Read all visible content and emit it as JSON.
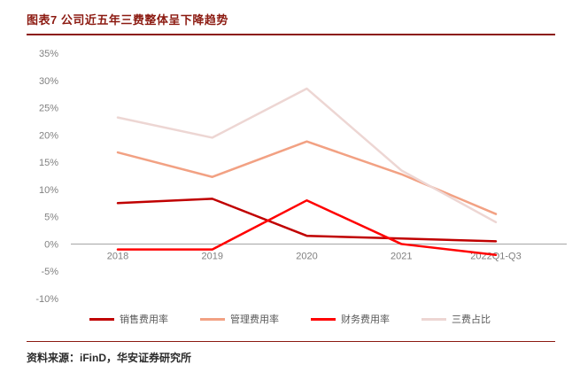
{
  "header": {
    "title": "图表7 公司近五年三费整体呈下降趋势"
  },
  "footer": {
    "source_label": "资料来源：",
    "source_text": "iFinD，华安证券研究所"
  },
  "colors": {
    "accent": "#8C1A11",
    "axis_text": "#808080",
    "axis_line": "#A6A6A6",
    "legend_text": "#595959"
  },
  "chart_data": {
    "type": "line",
    "title": "公司近五年三费整体呈下降趋势",
    "categories": [
      "2018",
      "2019",
      "2020",
      "2021",
      "2022Q1-Q3"
    ],
    "unit": "%",
    "ylim": [
      -10,
      35
    ],
    "y_ticks": [
      35,
      30,
      25,
      20,
      15,
      10,
      5,
      0,
      -5,
      -10
    ],
    "grid": false,
    "legend_position": "bottom",
    "series": [
      {
        "name": "销售费用率",
        "color": "#C00000",
        "width": 2.5,
        "values": [
          7.5,
          8.3,
          1.5,
          1.0,
          0.5
        ]
      },
      {
        "name": "管理费用率",
        "color": "#F2A183",
        "width": 2.5,
        "values": [
          16.8,
          12.3,
          18.8,
          12.8,
          5.5
        ]
      },
      {
        "name": "财务费用率",
        "color": "#FF0000",
        "width": 2.5,
        "values": [
          -1.0,
          -1.0,
          8.0,
          0.0,
          -2.0
        ]
      },
      {
        "name": "三费占比",
        "color": "#EDD6D3",
        "width": 2.5,
        "values": [
          23.2,
          19.5,
          28.5,
          13.5,
          4.0
        ]
      }
    ]
  }
}
